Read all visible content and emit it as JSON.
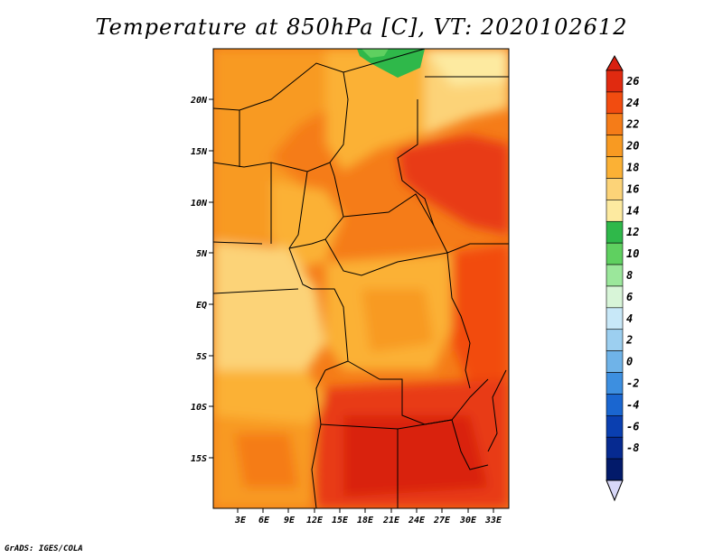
{
  "title": "Temperature at 850hPa [C], VT: 2020102612",
  "credit": "GrADS: IGES/COLA",
  "map": {
    "lat_ticks": [
      "20N",
      "15N",
      "10N",
      "5N",
      "EQ",
      "5S",
      "10S",
      "15S"
    ],
    "lon_ticks": [
      "3E",
      "6E",
      "9E",
      "12E",
      "15E",
      "18E",
      "21E",
      "24E",
      "27E",
      "30E",
      "33E"
    ],
    "units": "C"
  },
  "colorbar": {
    "labels": [
      "26",
      "24",
      "22",
      "20",
      "18",
      "16",
      "14",
      "12",
      "10",
      "8",
      "6",
      "4",
      "2",
      "0",
      "-2",
      "-4",
      "-6",
      "-8"
    ],
    "band_colors": [
      "#e02a10",
      "#f24c10",
      "#f57c18",
      "#f89a22",
      "#fbb135",
      "#fcd378",
      "#fdeaa0",
      "#2fb84a",
      "#5fd060",
      "#9be79b",
      "#d8f5d8",
      "#c8e8f8",
      "#9ccff0",
      "#6fb3e8",
      "#3d8fe0",
      "#1a66d0",
      "#0a3fb0",
      "#062a90",
      "#021a6a"
    ],
    "top_cap_color": "#d92010",
    "bottom_cap_color": "#d8d8f8"
  }
}
